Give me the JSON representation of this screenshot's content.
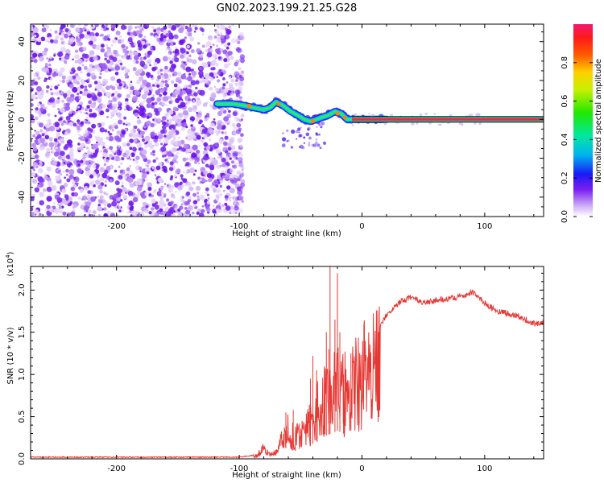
{
  "title": "GN02.2023.199.21.25.G28",
  "chart_data": [
    {
      "type": "heatmap",
      "title": "GN02.2023.199.21.25.G28",
      "xlabel": "Height of straight line (km)",
      "ylabel": "Frequency (Hz)",
      "xlim": [
        -270,
        148
      ],
      "ylim": [
        -50,
        49
      ],
      "x_ticks": [
        "-200",
        "-100",
        "0",
        "100"
      ],
      "y_ticks": [
        "40",
        "20",
        "0",
        "-20",
        "-40"
      ],
      "noise_region_x": [
        -270,
        -103
      ],
      "signal_trace": [
        {
          "x": -118,
          "y": 8
        },
        {
          "x": -105,
          "y": 8
        },
        {
          "x": -95,
          "y": 7
        },
        {
          "x": -88,
          "y": 6
        },
        {
          "x": -80,
          "y": 5
        },
        {
          "x": -75,
          "y": 6
        },
        {
          "x": -70,
          "y": 9
        },
        {
          "x": -64,
          "y": 7
        },
        {
          "x": -58,
          "y": 4
        },
        {
          "x": -52,
          "y": 2
        },
        {
          "x": -47,
          "y": 0
        },
        {
          "x": -42,
          "y": -1
        },
        {
          "x": -37,
          "y": 0
        },
        {
          "x": -33,
          "y": 1
        },
        {
          "x": -28,
          "y": 2
        },
        {
          "x": -22,
          "y": 4
        },
        {
          "x": -17,
          "y": 3
        },
        {
          "x": -12,
          "y": 0
        },
        {
          "x": -8,
          "y": 0
        },
        {
          "x": 20,
          "y": 0
        }
      ],
      "steady_line": {
        "x_start": -8,
        "x_end": 148,
        "y": 0
      },
      "colorbar": {
        "label": "Normalized spectral amplitude",
        "ticks": [
          "0.0",
          "0.2",
          "0.4",
          "0.6",
          "0.8"
        ]
      }
    },
    {
      "type": "line",
      "xlabel": "Height of straight line (km)",
      "ylabel": "SNR (10 * v/v)",
      "scale_label": "(x10",
      "scale_exp": "4",
      "scale_close": ")",
      "xlim": [
        -270,
        148
      ],
      "ylim": [
        0,
        2.28
      ],
      "x_ticks": [
        "-200",
        "-100",
        "0",
        "100"
      ],
      "y_ticks": [
        "0.0",
        "0.5",
        "1.0",
        "1.5",
        "2.0"
      ],
      "series": [
        {
          "color": "#e53935",
          "envelope": [
            {
              "x": -270,
              "y": 0.02
            },
            {
              "x": -100,
              "y": 0.02
            },
            {
              "x": -85,
              "y": 0.05
            },
            {
              "x": -80,
              "y": 0.2
            },
            {
              "x": -75,
              "y": 0.05
            },
            {
              "x": -70,
              "y": 0.1
            },
            {
              "x": -65,
              "y": 0.3
            },
            {
              "x": -60,
              "y": 0.5
            },
            {
              "x": -55,
              "y": 0.3
            },
            {
              "x": -50,
              "y": 0.4
            },
            {
              "x": -45,
              "y": 0.45
            },
            {
              "x": -40,
              "y": 0.6
            },
            {
              "x": -35,
              "y": 0.8
            },
            {
              "x": -30,
              "y": 0.9
            },
            {
              "x": -25,
              "y": 1.0
            },
            {
              "x": -20,
              "y": 1.1
            },
            {
              "x": -15,
              "y": 1.0
            },
            {
              "x": -10,
              "y": 1.1
            },
            {
              "x": -5,
              "y": 1.2
            },
            {
              "x": 0,
              "y": 1.3
            },
            {
              "x": 10,
              "y": 1.5
            },
            {
              "x": 20,
              "y": 1.7
            },
            {
              "x": 30,
              "y": 1.85
            },
            {
              "x": 40,
              "y": 1.92
            },
            {
              "x": 50,
              "y": 1.85
            },
            {
              "x": 60,
              "y": 1.88
            },
            {
              "x": 70,
              "y": 1.9
            },
            {
              "x": 80,
              "y": 1.92
            },
            {
              "x": 90,
              "y": 1.97
            },
            {
              "x": 100,
              "y": 1.85
            },
            {
              "x": 110,
              "y": 1.75
            },
            {
              "x": 120,
              "y": 1.72
            },
            {
              "x": 130,
              "y": 1.68
            },
            {
              "x": 140,
              "y": 1.6
            },
            {
              "x": 148,
              "y": 1.62
            }
          ],
          "spikes": [
            {
              "x": -26,
              "y": 2.28
            },
            {
              "x": -22,
              "y": 1.65
            },
            {
              "x": -20,
              "y": 2.2
            },
            {
              "x": -18,
              "y": 1.5
            },
            {
              "x": -27,
              "y": 1.3
            },
            {
              "x": -29,
              "y": 1.5
            },
            {
              "x": -37,
              "y": 1.05
            },
            {
              "x": -40,
              "y": 1.22
            },
            {
              "x": -15,
              "y": 1.0
            },
            {
              "x": -9,
              "y": 1.25
            },
            {
              "x": -56,
              "y": 0.58
            },
            {
              "x": -62,
              "y": 0.55
            },
            {
              "x": -42,
              "y": 0.95
            }
          ]
        }
      ]
    }
  ]
}
